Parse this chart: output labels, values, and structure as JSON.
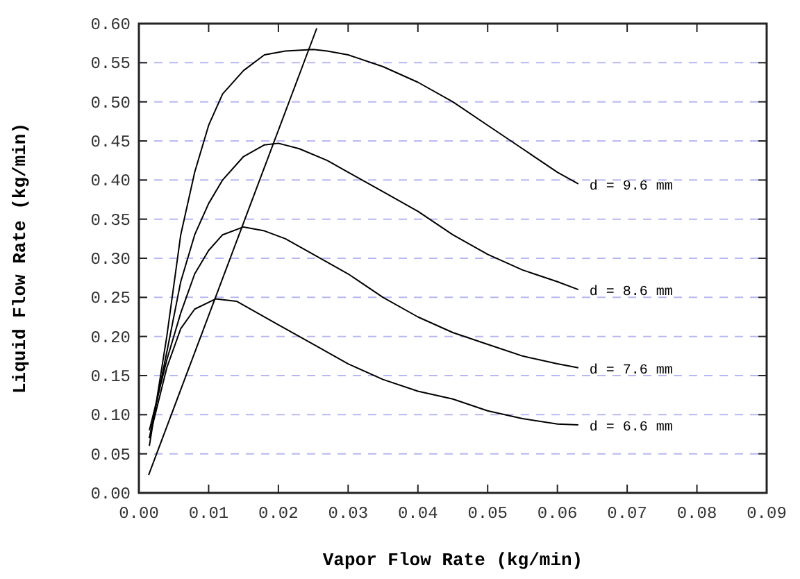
{
  "chart_data": {
    "type": "line",
    "xlabel": "Vapor Flow Rate (kg/min)",
    "ylabel": "Liquid Flow Rate (kg/min)",
    "xlim": [
      0,
      0.09
    ],
    "xticks": [
      {
        "value": 0,
        "label": "0.00"
      },
      {
        "value": 0.01,
        "label": "0.01"
      },
      {
        "value": 0.02,
        "label": "0.02"
      },
      {
        "value": 0.03,
        "label": "0.03"
      },
      {
        "value": 0.04,
        "label": "0.04"
      },
      {
        "value": 0.05,
        "label": "0.05"
      },
      {
        "value": 0.06,
        "label": "0.06"
      },
      {
        "value": 0.07,
        "label": "0.07"
      },
      {
        "value": 0.08,
        "label": "0.08"
      },
      {
        "value": 0.09,
        "label": "0.09"
      }
    ],
    "ylim": [
      0,
      0.6
    ],
    "yticks": [
      {
        "value": 0,
        "label": "0.00"
      },
      {
        "value": 0.05,
        "label": "0.05"
      },
      {
        "value": 0.1,
        "label": "0.10"
      },
      {
        "value": 0.15,
        "label": "0.15"
      },
      {
        "value": 0.2,
        "label": "0.20"
      },
      {
        "value": 0.25,
        "label": "0.25"
      },
      {
        "value": 0.3,
        "label": "0.30"
      },
      {
        "value": 0.35,
        "label": "0.35"
      },
      {
        "value": 0.4,
        "label": "0.40"
      },
      {
        "value": 0.45,
        "label": "0.45"
      },
      {
        "value": 0.5,
        "label": "0.50"
      },
      {
        "value": 0.55,
        "label": "0.55"
      },
      {
        "value": 0.6,
        "label": "0.60"
      }
    ],
    "grid": "y",
    "legend": false,
    "marker": "none",
    "line_style": "solid",
    "series": [
      {
        "name": "d = 9.6 mm",
        "color": "#000000",
        "x": [
          0.0015,
          0.004,
          0.006,
          0.008,
          0.01,
          0.012,
          0.015,
          0.018,
          0.021,
          0.025,
          0.027,
          0.03,
          0.035,
          0.04,
          0.045,
          0.05,
          0.055,
          0.06,
          0.063
        ],
        "values": [
          0.06,
          0.2,
          0.33,
          0.41,
          0.47,
          0.51,
          0.54,
          0.56,
          0.565,
          0.567,
          0.565,
          0.56,
          0.545,
          0.525,
          0.5,
          0.47,
          0.44,
          0.41,
          0.395
        ]
      },
      {
        "name": "d = 8.6 mm",
        "color": "#000000",
        "x": [
          0.0015,
          0.004,
          0.006,
          0.008,
          0.01,
          0.012,
          0.015,
          0.018,
          0.02,
          0.023,
          0.027,
          0.03,
          0.035,
          0.04,
          0.045,
          0.05,
          0.055,
          0.06,
          0.063
        ],
        "values": [
          0.07,
          0.18,
          0.27,
          0.33,
          0.37,
          0.4,
          0.43,
          0.445,
          0.447,
          0.44,
          0.425,
          0.41,
          0.385,
          0.36,
          0.33,
          0.305,
          0.285,
          0.27,
          0.26
        ]
      },
      {
        "name": "d = 7.6 mm",
        "color": "#000000",
        "x": [
          0.0015,
          0.004,
          0.006,
          0.008,
          0.01,
          0.012,
          0.015,
          0.018,
          0.021,
          0.025,
          0.03,
          0.035,
          0.04,
          0.045,
          0.05,
          0.055,
          0.06,
          0.063
        ],
        "values": [
          0.08,
          0.17,
          0.23,
          0.28,
          0.31,
          0.33,
          0.34,
          0.335,
          0.325,
          0.305,
          0.28,
          0.25,
          0.225,
          0.205,
          0.19,
          0.175,
          0.165,
          0.16
        ]
      },
      {
        "name": "d = 6.6 mm",
        "color": "#000000",
        "x": [
          0.0015,
          0.004,
          0.006,
          0.008,
          0.011,
          0.014,
          0.017,
          0.02,
          0.025,
          0.03,
          0.035,
          0.04,
          0.045,
          0.05,
          0.055,
          0.06,
          0.063
        ],
        "values": [
          0.07,
          0.16,
          0.21,
          0.235,
          0.248,
          0.245,
          0.23,
          0.215,
          0.19,
          0.165,
          0.145,
          0.13,
          0.12,
          0.105,
          0.095,
          0.088,
          0.087
        ]
      },
      {
        "color": "#000000",
        "x": [
          0.0014,
          0.0255
        ],
        "values": [
          0.023,
          0.594
        ]
      }
    ]
  }
}
